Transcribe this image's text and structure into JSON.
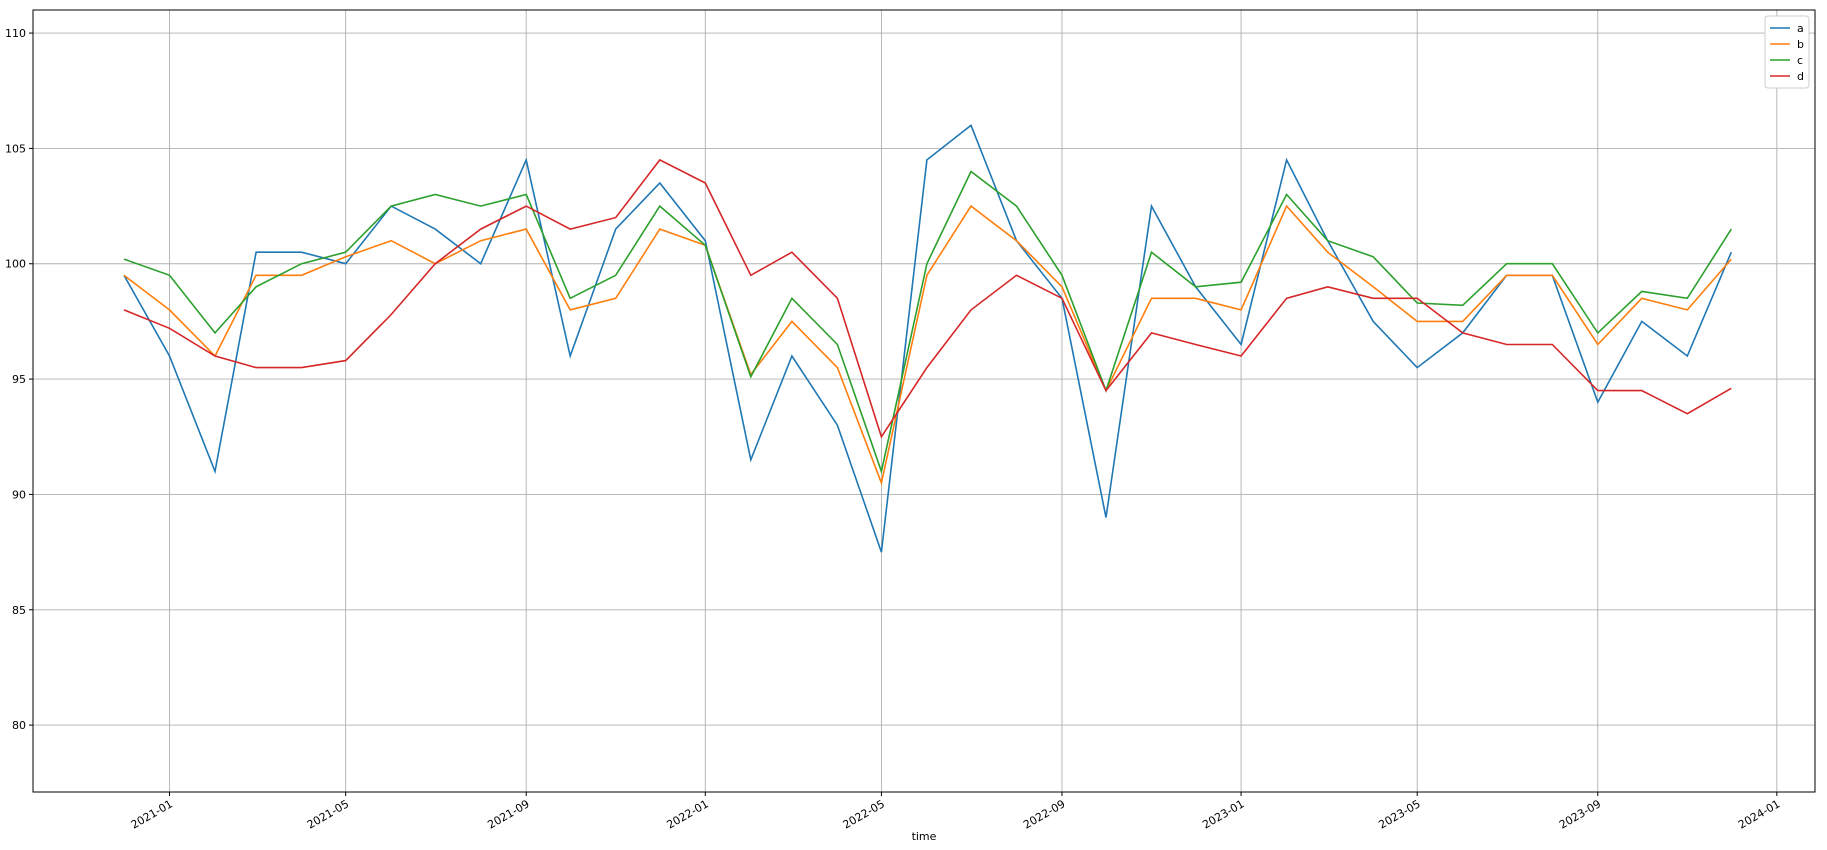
{
  "chart_data": {
    "type": "line",
    "x_label": "time",
    "x": [
      "2020-12",
      "2021-01",
      "2021-02",
      "2021-03",
      "2021-04",
      "2021-05",
      "2021-06",
      "2021-07",
      "2021-08",
      "2021-09",
      "2021-10",
      "2021-11",
      "2021-12",
      "2022-01",
      "2022-02",
      "2022-03",
      "2022-04",
      "2022-05",
      "2022-06",
      "2022-07",
      "2022-08",
      "2022-09",
      "2022-10",
      "2022-11",
      "2022-12",
      "2023-01",
      "2023-02",
      "2023-03",
      "2023-04",
      "2023-05",
      "2023-06",
      "2023-07",
      "2023-08",
      "2023-09",
      "2023-10",
      "2023-11",
      "2023-12"
    ],
    "series": [
      {
        "name": "a",
        "color": "#1f77b4",
        "values": [
          99.5,
          96,
          91,
          100.5,
          100.5,
          100,
          102.5,
          101.5,
          100,
          104.5,
          96,
          101.5,
          103.5,
          101,
          91.5,
          96,
          93,
          87.5,
          104.5,
          106,
          101,
          98.5,
          89,
          102.5,
          99,
          96.5,
          104.5,
          101,
          97.5,
          95.5,
          97,
          99.5,
          99.5,
          94,
          97.5,
          96,
          100.5
        ]
      },
      {
        "name": "b",
        "color": "#ff7f0e",
        "values": [
          99.5,
          98,
          96,
          99.5,
          99.5,
          100.3,
          101,
          100,
          101,
          101.5,
          98,
          98.5,
          101.5,
          100.8,
          95.2,
          97.5,
          95.5,
          90.5,
          99.5,
          102.5,
          101,
          99,
          94.5,
          98.5,
          98.5,
          98,
          102.5,
          100.5,
          99,
          97.5,
          97.5,
          99.5,
          99.5,
          96.5,
          98.5,
          98,
          100.2
        ]
      },
      {
        "name": "c",
        "color": "#2ca02c",
        "values": [
          100.2,
          99.5,
          97,
          99,
          100,
          100.5,
          102.5,
          103,
          102.5,
          103,
          98.5,
          99.5,
          102.5,
          100.8,
          95.1,
          98.5,
          96.5,
          91,
          100,
          104,
          102.5,
          99.5,
          94.5,
          100.5,
          99,
          99.2,
          103,
          101,
          100.3,
          98.3,
          98.2,
          100,
          100,
          97,
          98.8,
          98.5,
          101.5
        ]
      },
      {
        "name": "d",
        "color": "#d62728",
        "values": [
          98,
          97.2,
          96,
          95.5,
          95.5,
          95.8,
          97.8,
          100,
          101.5,
          102.5,
          101.5,
          102,
          104.5,
          103.5,
          99.5,
          100.5,
          98.5,
          92.5,
          95.5,
          98,
          99.5,
          98.5,
          94.5,
          97,
          96.5,
          96,
          98.5,
          99,
          98.5,
          98.5,
          97,
          96.5,
          96.5,
          94.5,
          94.5,
          93.5,
          94.6
        ]
      }
    ],
    "xlim": [
      "2020-09-30",
      "2024-01-27"
    ],
    "xticks": [
      "2021-01",
      "2021-05",
      "2021-09",
      "2022-01",
      "2022-05",
      "2022-09",
      "2023-01",
      "2023-05",
      "2023-09",
      "2024-01"
    ],
    "ylim": [
      77.1,
      111.0
    ],
    "yticks": [
      80,
      85,
      90,
      95,
      100,
      105,
      110
    ],
    "grid": true,
    "legend": "upper-right"
  }
}
